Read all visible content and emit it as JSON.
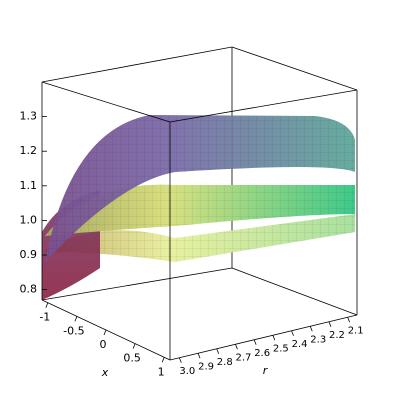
{
  "chart_data": {
    "type": "surface3d",
    "xlabel": "x",
    "ylabel": "r",
    "xlim": [
      -1.1,
      1.1
    ],
    "xticks": [
      -1,
      -0.5,
      0,
      0.5,
      1
    ],
    "ylim": [
      3.05,
      2.05
    ],
    "yticks": [
      {
        "value": 3,
        "label": "3.0"
      },
      2.9,
      2.8,
      2.7,
      2.6,
      2.5,
      2.4,
      2.3,
      2.2,
      2.1
    ],
    "zlim": [
      0.77,
      1.4
    ],
    "zticks": [
      0.8,
      0.9,
      {
        "value": 1,
        "label": "1.0"
      },
      1.1,
      1.2,
      1.3
    ]
  }
}
